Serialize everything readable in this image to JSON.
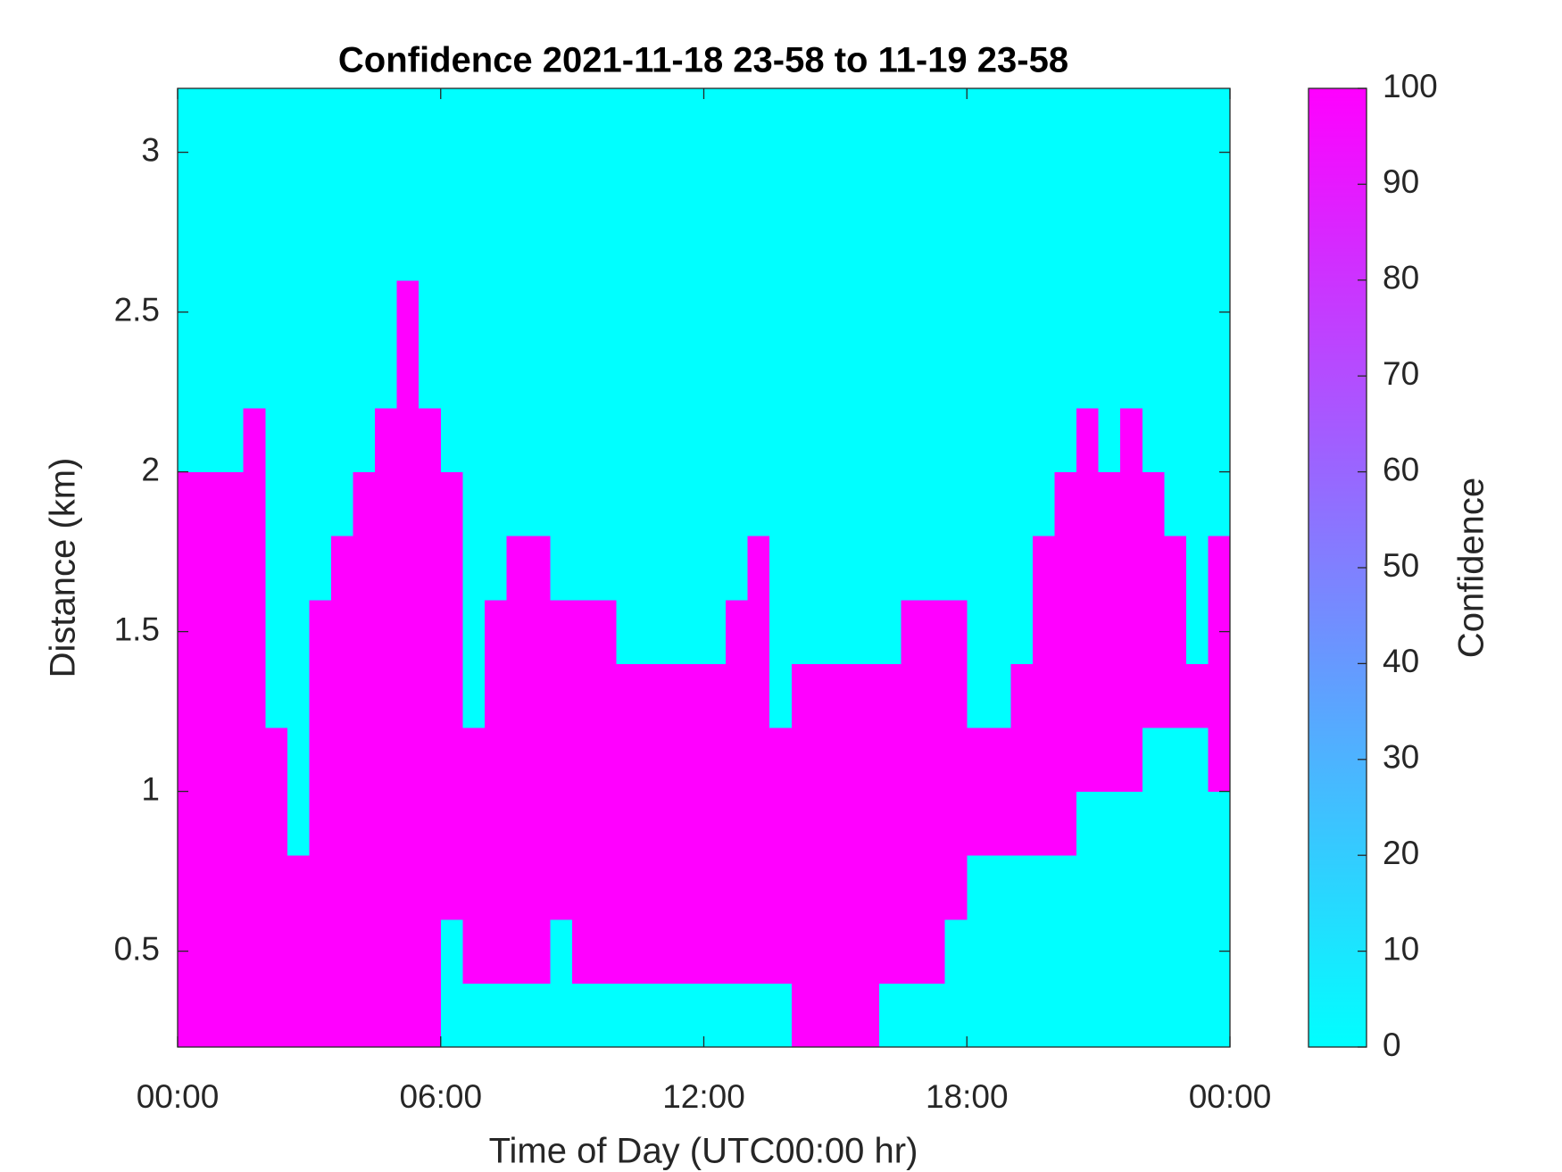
{
  "chart_data": {
    "type": "heatmap",
    "title": "Confidence 2021-11-18 23-58 to 11-19 23-58",
    "x_label": "Time of Day (UTC00:00 hr)",
    "y_label": "Distance (km)",
    "colorbar_label": "Confidence",
    "colormap": "cool",
    "xlim": [
      0,
      24
    ],
    "xticks": [
      {
        "value": 0,
        "label": "00:00"
      },
      {
        "value": 6,
        "label": "06:00"
      },
      {
        "value": 12,
        "label": "12:00"
      },
      {
        "value": 18,
        "label": "18:00"
      },
      {
        "value": 24,
        "label": "00:00"
      }
    ],
    "ylim": [
      0.2,
      3.2
    ],
    "yticks": [
      0.5,
      1,
      1.5,
      2,
      2.5,
      3
    ],
    "clim": [
      0,
      100
    ],
    "cticks": [
      0,
      10,
      20,
      30,
      40,
      50,
      60,
      70,
      80,
      90,
      100
    ],
    "x": [
      0.25,
      0.75,
      1.25,
      1.75,
      2.25,
      2.75,
      3.25,
      3.75,
      4.25,
      4.75,
      5.25,
      5.75,
      6.25,
      6.75,
      7.25,
      7.75,
      8.25,
      8.75,
      9.25,
      9.75,
      10.25,
      10.75,
      11.25,
      11.75,
      12.25,
      12.75,
      13.25,
      13.75,
      14.25,
      14.75,
      15.25,
      15.75,
      16.25,
      16.75,
      17.25,
      17.75,
      18.25,
      18.75,
      19.25,
      19.75,
      20.25,
      20.75,
      21.25,
      21.75,
      22.25,
      22.75,
      23.25,
      23.75
    ],
    "y": [
      0.3,
      0.5,
      0.7,
      0.9,
      1.1,
      1.3,
      1.5,
      1.7,
      1.9,
      2.1,
      2.3,
      2.5,
      2.7,
      2.9,
      3.1
    ],
    "z": [
      [
        100,
        100,
        100,
        100,
        100,
        100,
        100,
        100,
        100,
        100,
        100,
        100,
        0,
        0,
        0,
        0,
        0,
        0,
        0,
        0,
        0,
        0,
        0,
        0,
        0,
        0,
        0,
        0,
        100,
        100,
        100,
        100,
        0,
        0,
        0,
        0,
        0,
        0,
        0,
        0,
        0,
        0,
        0,
        0,
        0,
        0,
        0,
        0
      ],
      [
        100,
        100,
        100,
        100,
        100,
        100,
        100,
        100,
        100,
        100,
        100,
        100,
        0,
        100,
        100,
        100,
        100,
        0,
        100,
        100,
        100,
        100,
        100,
        100,
        100,
        100,
        100,
        100,
        100,
        100,
        100,
        100,
        100,
        100,
        100,
        0,
        0,
        0,
        0,
        0,
        0,
        0,
        0,
        0,
        0,
        0,
        0,
        0
      ],
      [
        100,
        100,
        100,
        100,
        100,
        100,
        100,
        100,
        100,
        100,
        100,
        100,
        100,
        100,
        100,
        100,
        100,
        100,
        100,
        100,
        100,
        100,
        100,
        100,
        100,
        100,
        100,
        100,
        100,
        100,
        100,
        100,
        100,
        100,
        100,
        100,
        0,
        0,
        0,
        0,
        0,
        0,
        0,
        0,
        0,
        0,
        0,
        0
      ],
      [
        100,
        100,
        100,
        100,
        100,
        0,
        100,
        100,
        100,
        100,
        100,
        100,
        100,
        100,
        100,
        100,
        100,
        100,
        100,
        100,
        100,
        100,
        100,
        100,
        100,
        100,
        100,
        100,
        100,
        100,
        100,
        100,
        100,
        100,
        100,
        100,
        100,
        100,
        100,
        100,
        100,
        0,
        0,
        0,
        0,
        0,
        0,
        0
      ],
      [
        100,
        100,
        100,
        100,
        100,
        0,
        100,
        100,
        100,
        100,
        100,
        100,
        100,
        100,
        100,
        100,
        100,
        100,
        100,
        100,
        100,
        100,
        100,
        100,
        100,
        100,
        100,
        100,
        100,
        100,
        100,
        100,
        100,
        100,
        100,
        100,
        100,
        100,
        100,
        100,
        100,
        100,
        100,
        100,
        0,
        0,
        0,
        100
      ],
      [
        100,
        100,
        100,
        100,
        0,
        0,
        100,
        100,
        100,
        100,
        100,
        100,
        100,
        0,
        100,
        100,
        100,
        100,
        100,
        100,
        100,
        100,
        100,
        100,
        100,
        100,
        100,
        0,
        100,
        100,
        100,
        100,
        100,
        100,
        100,
        100,
        0,
        0,
        100,
        100,
        100,
        100,
        100,
        100,
        100,
        100,
        100,
        100
      ],
      [
        100,
        100,
        100,
        100,
        0,
        0,
        100,
        100,
        100,
        100,
        100,
        100,
        100,
        0,
        100,
        100,
        100,
        100,
        100,
        100,
        0,
        0,
        0,
        0,
        0,
        100,
        100,
        0,
        0,
        0,
        0,
        0,
        0,
        100,
        100,
        100,
        0,
        0,
        0,
        100,
        100,
        100,
        100,
        100,
        100,
        100,
        0,
        100
      ],
      [
        100,
        100,
        100,
        100,
        0,
        0,
        0,
        100,
        100,
        100,
        100,
        100,
        100,
        0,
        0,
        100,
        100,
        0,
        0,
        0,
        0,
        0,
        0,
        0,
        0,
        0,
        100,
        0,
        0,
        0,
        0,
        0,
        0,
        0,
        0,
        0,
        0,
        0,
        0,
        100,
        100,
        100,
        100,
        100,
        100,
        100,
        0,
        100
      ],
      [
        100,
        100,
        100,
        100,
        0,
        0,
        0,
        0,
        100,
        100,
        100,
        100,
        100,
        0,
        0,
        0,
        0,
        0,
        0,
        0,
        0,
        0,
        0,
        0,
        0,
        0,
        0,
        0,
        0,
        0,
        0,
        0,
        0,
        0,
        0,
        0,
        0,
        0,
        0,
        0,
        100,
        100,
        100,
        100,
        100,
        0,
        0,
        0
      ],
      [
        0,
        0,
        0,
        100,
        0,
        0,
        0,
        0,
        0,
        100,
        100,
        100,
        0,
        0,
        0,
        0,
        0,
        0,
        0,
        0,
        0,
        0,
        0,
        0,
        0,
        0,
        0,
        0,
        0,
        0,
        0,
        0,
        0,
        0,
        0,
        0,
        0,
        0,
        0,
        0,
        0,
        100,
        0,
        100,
        0,
        0,
        0,
        0
      ],
      [
        0,
        0,
        0,
        0,
        0,
        0,
        0,
        0,
        0,
        0,
        100,
        0,
        0,
        0,
        0,
        0,
        0,
        0,
        0,
        0,
        0,
        0,
        0,
        0,
        0,
        0,
        0,
        0,
        0,
        0,
        0,
        0,
        0,
        0,
        0,
        0,
        0,
        0,
        0,
        0,
        0,
        0,
        0,
        0,
        0,
        0,
        0,
        0
      ],
      [
        0,
        0,
        0,
        0,
        0,
        0,
        0,
        0,
        0,
        0,
        100,
        0,
        0,
        0,
        0,
        0,
        0,
        0,
        0,
        0,
        0,
        0,
        0,
        0,
        0,
        0,
        0,
        0,
        0,
        0,
        0,
        0,
        0,
        0,
        0,
        0,
        0,
        0,
        0,
        0,
        0,
        0,
        0,
        0,
        0,
        0,
        0,
        0
      ],
      [
        0,
        0,
        0,
        0,
        0,
        0,
        0,
        0,
        0,
        0,
        0,
        0,
        0,
        0,
        0,
        0,
        0,
        0,
        0,
        0,
        0,
        0,
        0,
        0,
        0,
        0,
        0,
        0,
        0,
        0,
        0,
        0,
        0,
        0,
        0,
        0,
        0,
        0,
        0,
        0,
        0,
        0,
        0,
        0,
        0,
        0,
        0,
        0
      ],
      [
        0,
        0,
        0,
        0,
        0,
        0,
        0,
        0,
        0,
        0,
        0,
        0,
        0,
        0,
        0,
        0,
        0,
        0,
        0,
        0,
        0,
        0,
        0,
        0,
        0,
        0,
        0,
        0,
        0,
        0,
        0,
        0,
        0,
        0,
        0,
        0,
        0,
        0,
        0,
        0,
        0,
        0,
        0,
        0,
        0,
        0,
        0,
        0
      ],
      [
        0,
        0,
        0,
        0,
        0,
        0,
        0,
        0,
        0,
        0,
        0,
        0,
        0,
        0,
        0,
        0,
        0,
        0,
        0,
        0,
        0,
        0,
        0,
        0,
        0,
        0,
        0,
        0,
        0,
        0,
        0,
        0,
        0,
        0,
        0,
        0,
        0,
        0,
        0,
        0,
        0,
        0,
        0,
        0,
        0,
        0,
        0,
        0
      ]
    ]
  }
}
